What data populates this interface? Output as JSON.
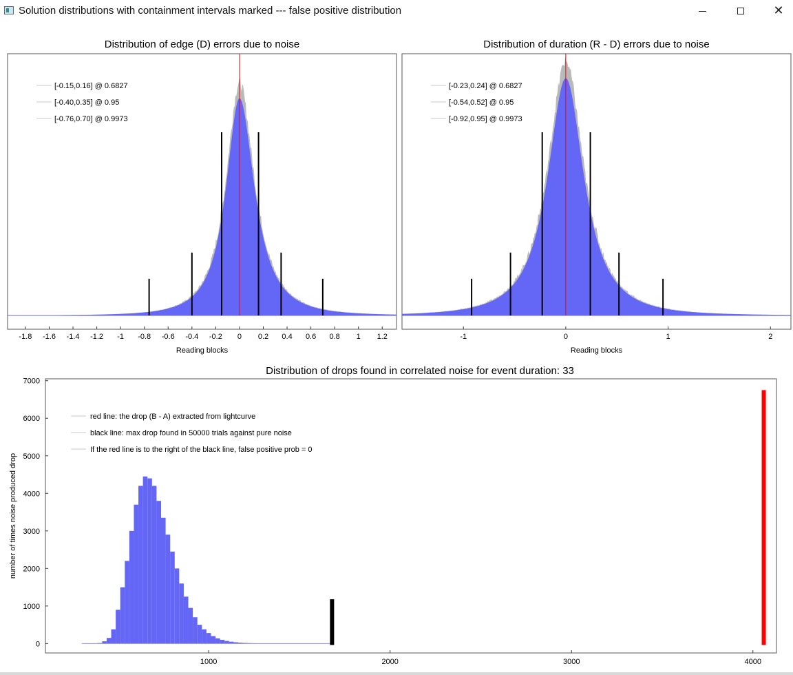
{
  "window": {
    "title": "Solution distributions with containment intervals marked --- false positive distribution",
    "minimize_label": "—",
    "maximize_label": "☐",
    "close_label": "✕"
  },
  "colors": {
    "histogram_fill": "#6466f5",
    "noise_edge": "#b9b9b9",
    "red_line": "#ff0000",
    "black_marks": "#000000",
    "baseline": "#6466f5"
  },
  "chart_data": [
    {
      "type": "bar",
      "title": "Distribution of edge (D) errors due to noise",
      "xlabel": "Reading blocks",
      "ylabel": "",
      "xlim": [
        -1.95,
        1.32
      ],
      "xticks": [
        -1.8,
        -1.6,
        -1.4,
        -1.2,
        -1,
        -0.8,
        -0.6,
        -0.4,
        -0.2,
        0,
        0.2,
        0.4,
        0.6,
        0.8,
        1,
        1.2
      ],
      "center_line_x": 0,
      "distribution": {
        "peak_x": 0,
        "left_scale": 0.135,
        "right_scale": 0.15
      },
      "containment_intervals": [
        {
          "label": "[-0.15,0.16] @ 0.6827",
          "low": -0.15,
          "high": 0.16,
          "confidence": 0.6827
        },
        {
          "label": "[-0.40,0.35] @ 0.95",
          "low": -0.4,
          "high": 0.35,
          "confidence": 0.95
        },
        {
          "label": "[-0.76,0.70] @ 0.9973",
          "low": -0.76,
          "high": 0.7,
          "confidence": 0.9973
        }
      ],
      "legend_position": "top-left",
      "grid": false
    },
    {
      "type": "bar",
      "title": "Distribution of duration (R - D) errors due to noise",
      "xlabel": "Reading blocks",
      "ylabel": "",
      "xlim": [
        -1.6,
        2.2
      ],
      "xticks": [
        -1,
        0,
        1,
        2
      ],
      "center_line_x": 0,
      "distribution": {
        "peak_x": 0,
        "left_scale": 0.21,
        "right_scale": 0.21
      },
      "containment_intervals": [
        {
          "label": "[-0.23,0.24] @ 0.6827",
          "low": -0.23,
          "high": 0.24,
          "confidence": 0.6827
        },
        {
          "label": "[-0.54,0.52] @ 0.95",
          "low": -0.54,
          "high": 0.52,
          "confidence": 0.95
        },
        {
          "label": "[-0.92,0.95] @ 0.9973",
          "low": -0.92,
          "high": 0.95,
          "confidence": 0.9973
        }
      ],
      "legend_position": "top-left",
      "grid": false
    },
    {
      "type": "bar",
      "title": "Distribution of drops found in correlated noise for event duration: 33",
      "xlabel": "",
      "ylabel": "number of times noise produced drop",
      "xlim": [
        100,
        4130
      ],
      "ylim": [
        -250,
        7050
      ],
      "xticks": [
        1000,
        2000,
        3000,
        4000
      ],
      "yticks": [
        0,
        1000,
        2000,
        3000,
        4000,
        5000,
        6000,
        7000
      ],
      "bin_width": 25,
      "bins": [
        {
          "x": 400,
          "count": 15
        },
        {
          "x": 425,
          "count": 60
        },
        {
          "x": 450,
          "count": 150
        },
        {
          "x": 475,
          "count": 380
        },
        {
          "x": 500,
          "count": 900
        },
        {
          "x": 525,
          "count": 1500
        },
        {
          "x": 550,
          "count": 2200
        },
        {
          "x": 575,
          "count": 3000
        },
        {
          "x": 600,
          "count": 3700
        },
        {
          "x": 625,
          "count": 4200
        },
        {
          "x": 650,
          "count": 4450
        },
        {
          "x": 675,
          "count": 4400
        },
        {
          "x": 700,
          "count": 4200
        },
        {
          "x": 725,
          "count": 3800
        },
        {
          "x": 750,
          "count": 3350
        },
        {
          "x": 775,
          "count": 2900
        },
        {
          "x": 800,
          "count": 2450
        },
        {
          "x": 825,
          "count": 2000
        },
        {
          "x": 850,
          "count": 1600
        },
        {
          "x": 875,
          "count": 1250
        },
        {
          "x": 900,
          "count": 950
        },
        {
          "x": 925,
          "count": 700
        },
        {
          "x": 950,
          "count": 500
        },
        {
          "x": 975,
          "count": 380
        },
        {
          "x": 1000,
          "count": 280
        },
        {
          "x": 1025,
          "count": 200
        },
        {
          "x": 1050,
          "count": 140
        },
        {
          "x": 1075,
          "count": 100
        },
        {
          "x": 1100,
          "count": 70
        },
        {
          "x": 1125,
          "count": 50
        },
        {
          "x": 1150,
          "count": 35
        },
        {
          "x": 1175,
          "count": 25
        },
        {
          "x": 1200,
          "count": 18
        },
        {
          "x": 1225,
          "count": 12
        },
        {
          "x": 1250,
          "count": 8
        },
        {
          "x": 1275,
          "count": 6
        },
        {
          "x": 1300,
          "count": 4
        },
        {
          "x": 1325,
          "count": 3
        },
        {
          "x": 1350,
          "count": 2
        },
        {
          "x": 1375,
          "count": 2
        },
        {
          "x": 1400,
          "count": 1
        }
      ],
      "black_line": {
        "x": 1680,
        "height": 1180
      },
      "red_line": {
        "x": 4060,
        "height": 6750
      },
      "legend": [
        "red line: the drop (B - A) extracted from lightcurve",
        "black line: max drop found in 50000 trials against pure noise",
        "If the red line is to the right of the black line, false positive prob = 0"
      ],
      "legend_position": "top-left",
      "grid": false
    }
  ]
}
